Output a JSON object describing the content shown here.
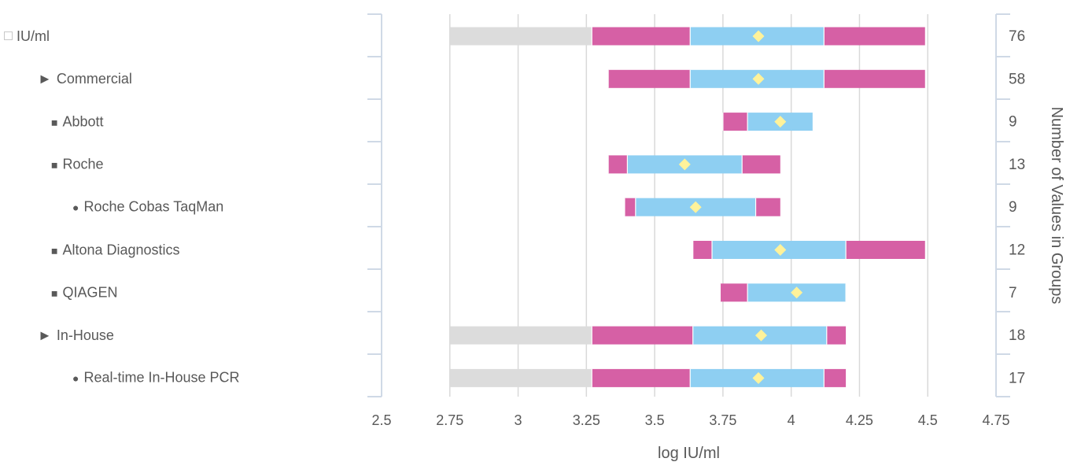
{
  "chart_data": {
    "type": "bar",
    "orientation": "horizontal-stacked-range",
    "xlabel": "log IU/ml",
    "secondary_ylabel": "Number of Values in Groups",
    "xlim": [
      2.5,
      4.75
    ],
    "xticks": [
      "2.5",
      "2.75",
      "3",
      "3.25",
      "3.5",
      "3.75",
      "4",
      "4.25",
      "4.5",
      "4.75"
    ],
    "grid": true,
    "colors": {
      "low_tail": "#dcdcdc",
      "lower_range": "#d660a5",
      "interquartile": "#8ecff2",
      "upper_range": "#d660a5",
      "mean_marker": "#fff29a",
      "grid": "#d9d9d9",
      "axis_bracket": "#cfd9e6"
    },
    "rows": [
      {
        "label": "IU/ml",
        "marker": "checkbox",
        "level": 0,
        "min": 2.75,
        "p10": 3.27,
        "q1": 3.63,
        "mean": 3.88,
        "q3": 4.12,
        "max": 4.49,
        "count": "76"
      },
      {
        "label": "Commercial",
        "marker": "►",
        "level": 1,
        "min": null,
        "p10": 3.33,
        "q1": 3.63,
        "mean": 3.88,
        "q3": 4.12,
        "max": 4.49,
        "count": "58"
      },
      {
        "label": "Abbott",
        "marker": "■",
        "level": 2,
        "min": null,
        "p10": 3.75,
        "q1": 3.84,
        "mean": 3.96,
        "q3": 4.08,
        "max": 4.08,
        "count": "9"
      },
      {
        "label": "Roche",
        "marker": "■",
        "level": 2,
        "min": null,
        "p10": 3.33,
        "q1": 3.4,
        "mean": 3.61,
        "q3": 3.82,
        "max": 3.96,
        "count": "13"
      },
      {
        "label": "Roche Cobas TaqMan",
        "marker": "●",
        "level": 3,
        "min": null,
        "p10": 3.39,
        "q1": 3.43,
        "mean": 3.65,
        "q3": 3.87,
        "max": 3.96,
        "count": "9"
      },
      {
        "label": "Altona Diagnostics",
        "marker": "■",
        "level": 2,
        "min": null,
        "p10": 3.64,
        "q1": 3.71,
        "mean": 3.96,
        "q3": 4.2,
        "max": 4.49,
        "count": "12"
      },
      {
        "label": "QIAGEN",
        "marker": "■",
        "level": 2,
        "min": null,
        "p10": 3.74,
        "q1": 3.84,
        "mean": 4.02,
        "q3": 4.2,
        "max": 4.2,
        "count": "7"
      },
      {
        "label": "In-House",
        "marker": "►",
        "level": 1,
        "min": 2.75,
        "p10": 3.27,
        "q1": 3.64,
        "mean": 3.89,
        "q3": 4.13,
        "max": 4.2,
        "count": "18"
      },
      {
        "label": "Real-time In-House PCR",
        "marker": "●",
        "level": 3,
        "min": 2.75,
        "p10": 3.27,
        "q1": 3.63,
        "mean": 3.88,
        "q3": 4.12,
        "max": 4.2,
        "count": "17"
      }
    ]
  }
}
